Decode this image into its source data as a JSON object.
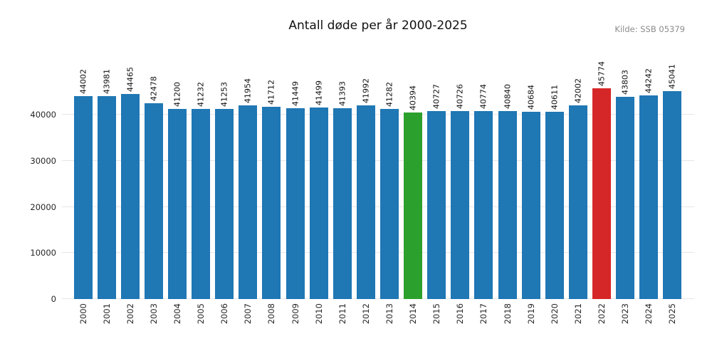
{
  "header": {
    "title": "Antall døde per år 2000-2025",
    "source": "Kilde: SSB 05379"
  },
  "chart_data": {
    "type": "bar",
    "title": "Antall døde per år 2000-2025",
    "source": "Kilde: SSB 05379",
    "categories": [
      "2000",
      "2001",
      "2002",
      "2003",
      "2004",
      "2005",
      "2006",
      "2007",
      "2008",
      "2009",
      "2010",
      "2011",
      "2012",
      "2013",
      "2014",
      "2015",
      "2016",
      "2017",
      "2018",
      "2019",
      "2020",
      "2021",
      "2022",
      "2023",
      "2024",
      "2025"
    ],
    "values": [
      44002,
      43981,
      44465,
      42478,
      41200,
      41232,
      41253,
      41954,
      41712,
      41449,
      41499,
      41393,
      41992,
      41282,
      40394,
      40727,
      40726,
      40774,
      40840,
      40684,
      40611,
      42002,
      45774,
      43803,
      44242,
      45041
    ],
    "bar_colors": [
      "#1f77b4",
      "#1f77b4",
      "#1f77b4",
      "#1f77b4",
      "#1f77b4",
      "#1f77b4",
      "#1f77b4",
      "#1f77b4",
      "#1f77b4",
      "#1f77b4",
      "#1f77b4",
      "#1f77b4",
      "#1f77b4",
      "#1f77b4",
      "#2ca02c",
      "#1f77b4",
      "#1f77b4",
      "#1f77b4",
      "#1f77b4",
      "#1f77b4",
      "#1f77b4",
      "#1f77b4",
      "#d62728",
      "#1f77b4",
      "#1f77b4",
      "#1f77b4"
    ],
    "default_bar_color": "#1f77b4",
    "highlights": {
      "2014": "#2ca02c",
      "2022": "#d62728"
    },
    "value_labels_rotation": 90,
    "x_tick_rotation": 90,
    "xlabel": "",
    "ylabel": "",
    "yticks": [
      0,
      10000,
      20000,
      30000,
      40000
    ],
    "ylim": [
      0,
      52500
    ],
    "grid": true,
    "gridline_color": "#e6e6e6",
    "background": "#ffffff",
    "legend": "none"
  }
}
